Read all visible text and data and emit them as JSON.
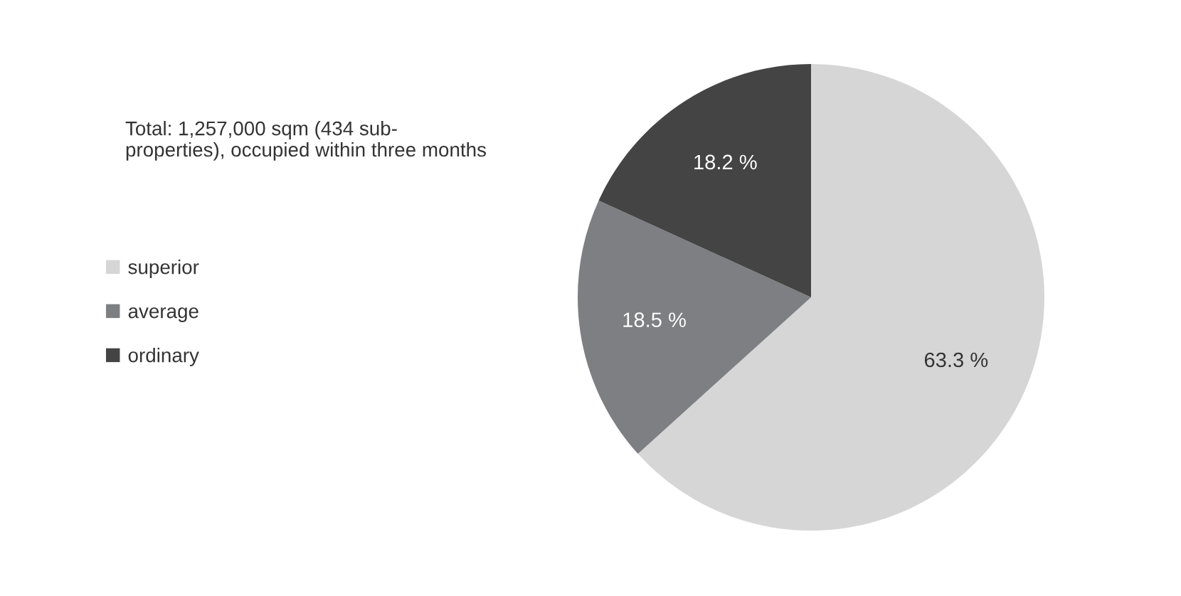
{
  "chart_data": {
    "type": "pie",
    "categories": [
      "superior",
      "average",
      "ordinary"
    ],
    "values": [
      63.3,
      18.5,
      18.2
    ],
    "colors": [
      "#d6d6d6",
      "#7d7f83",
      "#444444"
    ],
    "value_labels": [
      "63.3 %",
      "18.5 %",
      "18.2 %"
    ],
    "annotations": [
      "Total: 1,257,000 sqm (434 sub-\nproperties), occupied within three months"
    ],
    "legend": "left"
  }
}
